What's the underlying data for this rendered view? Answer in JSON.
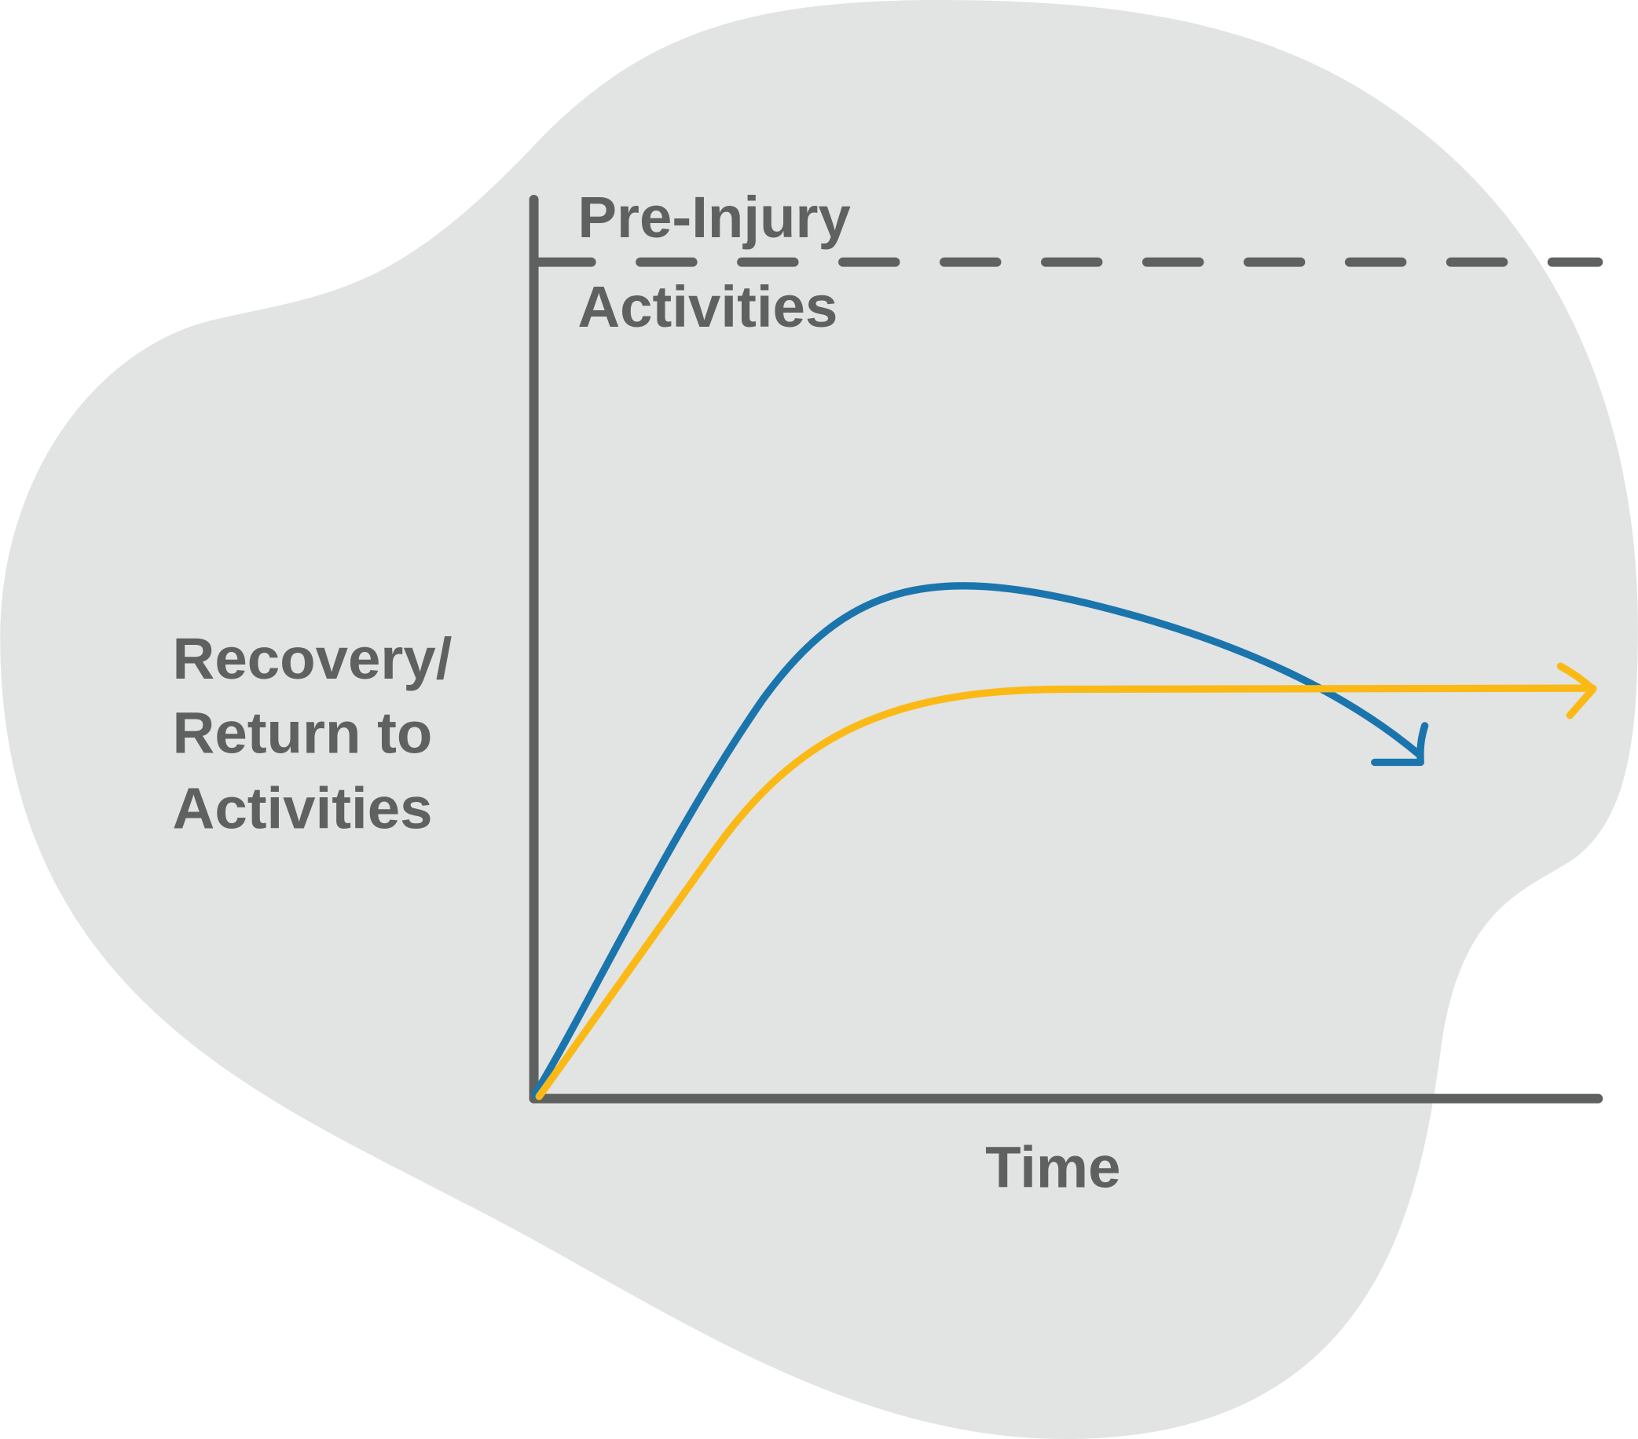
{
  "labels": {
    "reference_line": [
      "Pre-Injury",
      "Activities"
    ],
    "y_axis": [
      "Recovery/",
      "Return to",
      "Activities"
    ],
    "x_axis": "Time"
  }
}
